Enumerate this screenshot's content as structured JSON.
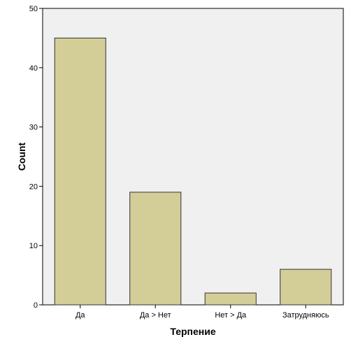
{
  "chart_data": {
    "type": "bar",
    "categories": [
      "Да",
      "Да > Нет",
      "Нет > Да",
      "Затрудняюсь"
    ],
    "values": [
      45,
      19,
      2,
      6
    ],
    "title": "",
    "xlabel": "Терпение",
    "ylabel": "Count",
    "ylim": [
      0,
      50
    ],
    "yticks": [
      0,
      10,
      20,
      30,
      40,
      50
    ],
    "grid": false,
    "legend": "none",
    "colors": {
      "plot_background": "#f0f0f0",
      "bar_fill": "#d3ce98",
      "bar_stroke": "#333333",
      "axis": "#000000"
    }
  }
}
